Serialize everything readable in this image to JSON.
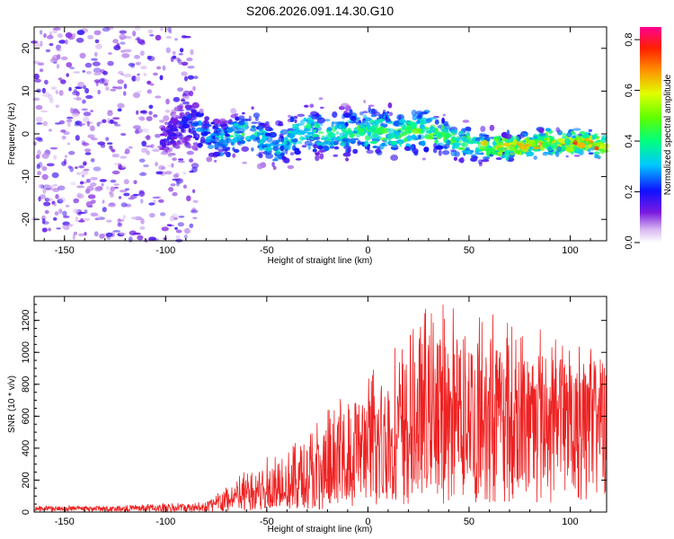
{
  "figure_title": "S206.2026.091.14.30.G10",
  "chart_data": [
    {
      "type": "heatmap",
      "title": "S206.2026.091.14.30.G10",
      "xlabel": "Height of straight line (km)",
      "ylabel": "Frequency (Hz)",
      "xlim": [
        -165,
        118
      ],
      "ylim": [
        -25,
        25
      ],
      "x_ticks": [
        -150,
        -100,
        -50,
        0,
        50,
        100
      ],
      "x_tick_labels": [
        "-150",
        "-100",
        "-50",
        "0",
        "50",
        "100"
      ],
      "y_ticks": [
        -20,
        -10,
        0,
        10,
        20
      ],
      "y_tick_labels": [
        "-20",
        "-10",
        "0",
        "10",
        "20"
      ],
      "colorbar": {
        "label": "Normalized spectral amplitude",
        "range": [
          0.0,
          0.85
        ],
        "ticks": [
          0.0,
          0.2,
          0.4,
          0.6,
          0.8
        ],
        "tick_labels": [
          "0.0",
          "0.2",
          "0.4",
          "0.6",
          "0.8"
        ],
        "colormap": "rainbow"
      },
      "band": [
        {
          "x": -100,
          "center": -1,
          "halfwidth": 3,
          "level": 0.15
        },
        {
          "x": -90,
          "center": 3,
          "halfwidth": 4,
          "level": 0.2
        },
        {
          "x": -75,
          "center": -2,
          "halfwidth": 4,
          "level": 0.25
        },
        {
          "x": -60,
          "center": 1,
          "halfwidth": 4,
          "level": 0.3
        },
        {
          "x": -45,
          "center": -3,
          "halfwidth": 4,
          "level": 0.28
        },
        {
          "x": -30,
          "center": 1,
          "halfwidth": 4,
          "level": 0.3
        },
        {
          "x": -15,
          "center": 0,
          "halfwidth": 4,
          "level": 0.32
        },
        {
          "x": 0,
          "center": 1,
          "halfwidth": 4,
          "level": 0.35
        },
        {
          "x": 15,
          "center": 0,
          "halfwidth": 4,
          "level": 0.35
        },
        {
          "x": 30,
          "center": 1,
          "halfwidth": 4,
          "level": 0.35
        },
        {
          "x": 45,
          "center": -2,
          "halfwidth": 3,
          "level": 0.35
        },
        {
          "x": 60,
          "center": -3,
          "halfwidth": 2,
          "level": 0.45
        },
        {
          "x": 75,
          "center": -3,
          "halfwidth": 2,
          "level": 0.5
        },
        {
          "x": 90,
          "center": -2,
          "halfwidth": 2,
          "level": 0.5
        },
        {
          "x": 105,
          "center": -2,
          "halfwidth": 2,
          "level": 0.55
        },
        {
          "x": 117,
          "center": -3,
          "halfwidth": 2,
          "level": 0.5
        }
      ],
      "noise_region": {
        "x_from": -165,
        "x_to": -85,
        "level": 0.15
      }
    },
    {
      "type": "line",
      "xlabel": "Height of straight line (km)",
      "ylabel": "SNR (10 * v/v)",
      "xlim": [
        -165,
        118
      ],
      "ylim": [
        0,
        1350
      ],
      "x_ticks": [
        -150,
        -100,
        -50,
        0,
        50,
        100
      ],
      "x_tick_labels": [
        "-150",
        "-100",
        "-50",
        "0",
        "50",
        "100"
      ],
      "y_ticks": [
        0,
        200,
        400,
        600,
        800,
        1000,
        1200
      ],
      "y_tick_labels": [
        "0",
        "200",
        "400",
        "600",
        "800",
        "1000",
        "1200"
      ],
      "color": "#ee2222",
      "series": [
        {
          "name": "SNR",
          "envelope": {
            "x": [
              -165,
              -120,
              -90,
              -80,
              -70,
              -60,
              -50,
              -40,
              -30,
              -20,
              -10,
              0,
              10,
              20,
              25,
              30,
              40,
              50,
              60,
              70,
              80,
              90,
              100,
              110,
              118
            ],
            "baseline": [
              20,
              20,
              25,
              30,
              50,
              90,
              120,
              140,
              170,
              200,
              260,
              350,
              420,
              480,
              500,
              520,
              520,
              520,
              560,
              600,
              620,
              600,
              600,
              620,
              620
            ],
            "peak": [
              40,
              45,
              60,
              80,
              180,
              270,
              360,
              440,
              520,
              640,
              800,
              880,
              1000,
              1100,
              1300,
              1280,
              1320,
              1300,
              1340,
              1200,
              1120,
              1180,
              1060,
              1040,
              920
            ]
          }
        }
      ]
    }
  ]
}
